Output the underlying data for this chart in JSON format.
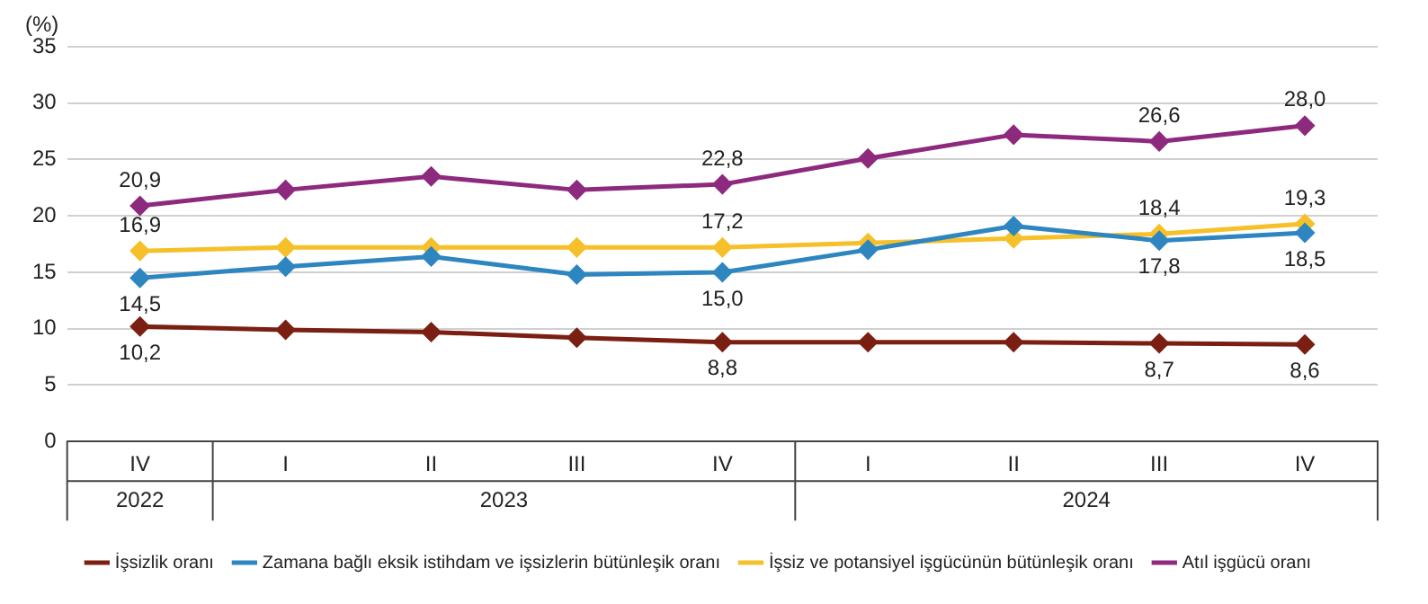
{
  "chart_data": {
    "type": "line",
    "ylabel": "(%)",
    "categories": [
      "IV",
      "I",
      "II",
      "III",
      "IV",
      "I",
      "II",
      "III",
      "IV"
    ],
    "annotations": [
      "2022",
      "2023",
      "2024"
    ],
    "ylim": [
      0,
      35
    ],
    "yticks": [
      0,
      5,
      10,
      15,
      20,
      25,
      30,
      35
    ],
    "grid": "y",
    "legend": "bottom",
    "marker": "diamond",
    "line_style": "solid",
    "series": [
      {
        "name": "İşsizlik oranı",
        "color": "#7b1f12",
        "values": [
          10.2,
          9.9,
          9.7,
          9.2,
          8.8,
          8.8,
          8.8,
          8.7,
          8.6
        ],
        "value_labels": [
          "10,2",
          null,
          null,
          null,
          "8,8",
          null,
          null,
          "8,7",
          "8,6"
        ]
      },
      {
        "name": "Zamana bağlı eksik istihdam ve işsizlerin bütünleşik oranı",
        "color": "#2e86c1",
        "values": [
          14.5,
          15.5,
          16.4,
          14.8,
          15.0,
          17.0,
          19.1,
          17.8,
          18.5
        ],
        "value_labels": [
          "14,5",
          null,
          null,
          null,
          "15,0",
          null,
          null,
          "17,8",
          "18,5"
        ]
      },
      {
        "name": "İşsiz ve potansiyel işgücünün bütünleşik oranı",
        "color": "#f5c02a",
        "values": [
          16.9,
          17.2,
          17.2,
          17.2,
          17.2,
          17.6,
          18.0,
          18.4,
          19.3
        ],
        "value_labels": [
          "16,9",
          null,
          null,
          null,
          "17,2",
          null,
          null,
          "18,4",
          "19,3"
        ]
      },
      {
        "name": "Atıl işgücü oranı",
        "color": "#8e2a7e",
        "values": [
          20.9,
          22.3,
          23.5,
          22.3,
          22.8,
          25.1,
          27.2,
          26.6,
          28.0
        ],
        "value_labels": [
          "20,9",
          null,
          null,
          null,
          "22,8",
          null,
          null,
          "26,6",
          "28,0"
        ]
      }
    ]
  }
}
